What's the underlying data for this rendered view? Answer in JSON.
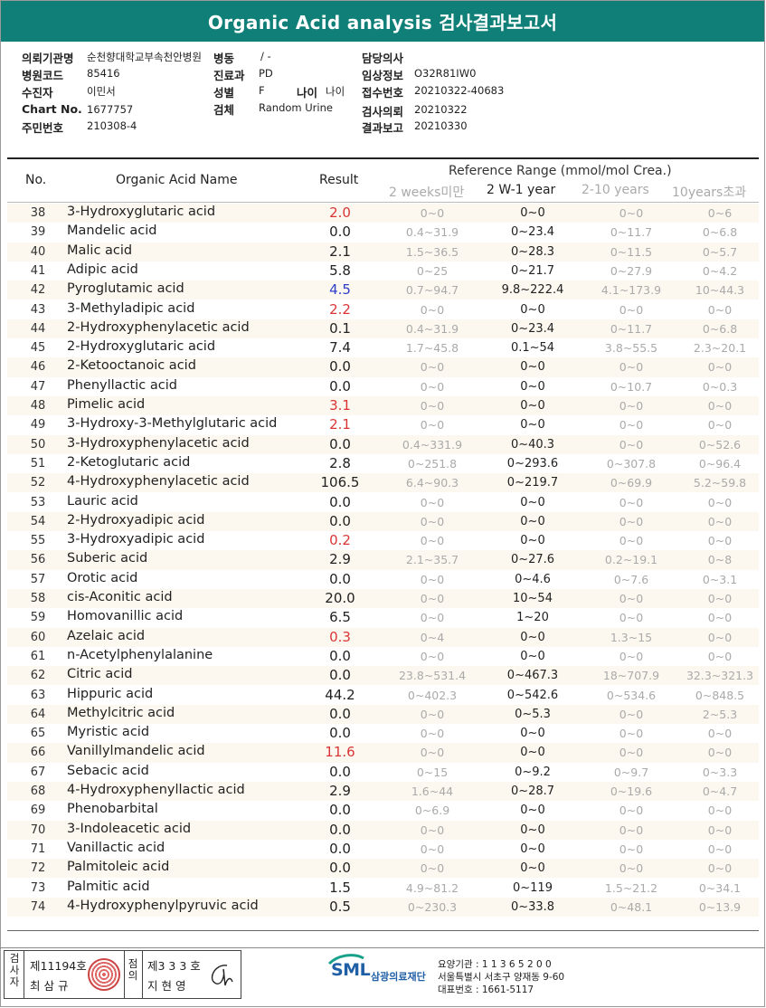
{
  "title": "Organic Acid analysis 검사결과보고서",
  "info": {
    "institution_label": "의뢰기관명",
    "institution_value": "순천향대학교부속천안병원",
    "ward_label": "병동",
    "ward_value": "/ -",
    "doctor_label": "담당의사",
    "doctor_value": "",
    "hospital_code_label": "병원코드",
    "hospital_code_value": "85416",
    "dept_label": "진료과",
    "dept_value": "PD",
    "clinical_label": "임상정보",
    "clinical_value": "O32R81IW0",
    "patient_label": "수진자",
    "patient_value": "이민서",
    "sex_label": "성별",
    "sex_value": "F",
    "age_label": "나이",
    "age_value": "나이",
    "accession_label": "접수번호",
    "accession_value": "20210322-40683",
    "chart_label": "Chart No.",
    "chart_value": "1677757",
    "specimen_label": "검체",
    "specimen_value": "Random Urine",
    "request_label": "검사의뢰",
    "request_value": "20210322",
    "resident_label": "주민번호",
    "resident_value": "210308-4",
    "report_label": "결과보고",
    "report_value": "20210330"
  },
  "table": {
    "headers": {
      "no": "No.",
      "name": "Organic Acid Name",
      "result": "Result",
      "reference": "Reference Range (mmol/mol Crea.)",
      "r1": "2 weeks미만",
      "r2": "2 W-1 year",
      "r3": "2-10 years",
      "r4": "10years초과"
    },
    "rows": [
      {
        "no": "38",
        "name": "3-Hydroxyglutaric acid",
        "result": "2.0",
        "flag": "red",
        "r1": "0~0",
        "r2": "0~0",
        "r3": "0~0",
        "r4": "0~6"
      },
      {
        "no": "39",
        "name": "Mandelic acid",
        "result": "0.0",
        "flag": "",
        "r1": "0.4~31.9",
        "r2": "0~23.4",
        "r3": "0~11.7",
        "r4": "0~6.8"
      },
      {
        "no": "40",
        "name": "Malic acid",
        "result": "2.1",
        "flag": "",
        "r1": "1.5~36.5",
        "r2": "0~28.3",
        "r3": "0~11.5",
        "r4": "0~5.7"
      },
      {
        "no": "41",
        "name": "Adipic acid",
        "result": "5.8",
        "flag": "",
        "r1": "0~25",
        "r2": "0~21.7",
        "r3": "0~27.9",
        "r4": "0~4.2"
      },
      {
        "no": "42",
        "name": "Pyroglutamic acid",
        "result": "4.5",
        "flag": "blue",
        "r1": "0.7~94.7",
        "r2": "9.8~222.4",
        "r3": "4.1~173.9",
        "r4": "10~44.3"
      },
      {
        "no": "43",
        "name": "3-Methyladipic acid",
        "result": "2.2",
        "flag": "red",
        "r1": "0~0",
        "r2": "0~0",
        "r3": "0~0",
        "r4": "0~0"
      },
      {
        "no": "44",
        "name": "2-Hydroxyphenylacetic acid",
        "result": "0.1",
        "flag": "",
        "r1": "0.4~31.9",
        "r2": "0~23.4",
        "r3": "0~11.7",
        "r4": "0~6.8"
      },
      {
        "no": "45",
        "name": "2-Hydroxyglutaric acid",
        "result": "7.4",
        "flag": "",
        "r1": "1.7~45.8",
        "r2": "0.1~54",
        "r3": "3.8~55.5",
        "r4": "2.3~20.1"
      },
      {
        "no": "46",
        "name": "2-Ketooctanoic acid",
        "result": "0.0",
        "flag": "",
        "r1": "0~0",
        "r2": "0~0",
        "r3": "0~0",
        "r4": "0~0"
      },
      {
        "no": "47",
        "name": "Phenyllactic acid",
        "result": "0.0",
        "flag": "",
        "r1": "0~0",
        "r2": "0~0",
        "r3": "0~10.7",
        "r4": "0~0.3"
      },
      {
        "no": "48",
        "name": "Pimelic acid",
        "result": "3.1",
        "flag": "red",
        "r1": "0~0",
        "r2": "0~0",
        "r3": "0~0",
        "r4": "0~0"
      },
      {
        "no": "49",
        "name": "3-Hydroxy-3-Methylglutaric acid",
        "result": "2.1",
        "flag": "red",
        "r1": "0~0",
        "r2": "0~0",
        "r3": "0~0",
        "r4": "0~0"
      },
      {
        "no": "50",
        "name": "3-Hydroxyphenylacetic acid",
        "result": "0.0",
        "flag": "",
        "r1": "0.4~331.9",
        "r2": "0~40.3",
        "r3": "0~0",
        "r4": "0~52.6"
      },
      {
        "no": "51",
        "name": "2-Ketoglutaric acid",
        "result": "2.8",
        "flag": "",
        "r1": "0~251.8",
        "r2": "0~293.6",
        "r3": "0~307.8",
        "r4": "0~96.4"
      },
      {
        "no": "52",
        "name": "4-Hydroxyphenylacetic acid",
        "result": "106.5",
        "flag": "",
        "r1": "6.4~90.3",
        "r2": "0~219.7",
        "r3": "0~69.9",
        "r4": "5.2~59.8"
      },
      {
        "no": "53",
        "name": "Lauric acid",
        "result": "0.0",
        "flag": "",
        "r1": "0~0",
        "r2": "0~0",
        "r3": "0~0",
        "r4": "0~0"
      },
      {
        "no": "54",
        "name": "2-Hydroxyadipic acid",
        "result": "0.0",
        "flag": "",
        "r1": "0~0",
        "r2": "0~0",
        "r3": "0~0",
        "r4": "0~0"
      },
      {
        "no": "55",
        "name": "3-Hydroxyadipic acid",
        "result": "0.2",
        "flag": "red",
        "r1": "0~0",
        "r2": "0~0",
        "r3": "0~0",
        "r4": "0~0"
      },
      {
        "no": "56",
        "name": "Suberic acid",
        "result": "2.9",
        "flag": "",
        "r1": "2.1~35.7",
        "r2": "0~27.6",
        "r3": "0.2~19.1",
        "r4": "0~8"
      },
      {
        "no": "57",
        "name": "Orotic acid",
        "result": "0.0",
        "flag": "",
        "r1": "0~0",
        "r2": "0~4.6",
        "r3": "0~7.6",
        "r4": "0~3.1"
      },
      {
        "no": "58",
        "name": "cis-Aconitic acid",
        "result": "20.0",
        "flag": "",
        "r1": "0~0",
        "r2": "10~54",
        "r3": "0~0",
        "r4": "0~0"
      },
      {
        "no": "59",
        "name": "Homovanillic acid",
        "result": "6.5",
        "flag": "",
        "r1": "0~0",
        "r2": "1~20",
        "r3": "0~0",
        "r4": "0~0"
      },
      {
        "no": "60",
        "name": "Azelaic acid",
        "result": "0.3",
        "flag": "red",
        "r1": "0~4",
        "r2": "0~0",
        "r3": "1.3~15",
        "r4": "0~0"
      },
      {
        "no": "61",
        "name": "n-Acetylphenylalanine",
        "result": "0.0",
        "flag": "",
        "r1": "0~0",
        "r2": "0~0",
        "r3": "0~0",
        "r4": "0~0"
      },
      {
        "no": "62",
        "name": "Citric acid",
        "result": "0.0",
        "flag": "",
        "r1": "23.8~531.4",
        "r2": "0~467.3",
        "r3": "18~707.9",
        "r4": "32.3~321.3"
      },
      {
        "no": "63",
        "name": "Hippuric acid",
        "result": "44.2",
        "flag": "",
        "r1": "0~402.3",
        "r2": "0~542.6",
        "r3": "0~534.6",
        "r4": "0~848.5"
      },
      {
        "no": "64",
        "name": "Methylcitric acid",
        "result": "0.0",
        "flag": "",
        "r1": "0~0",
        "r2": "0~5.3",
        "r3": "0~0",
        "r4": "2~5.3"
      },
      {
        "no": "65",
        "name": "Myristic acid",
        "result": "0.0",
        "flag": "",
        "r1": "0~0",
        "r2": "0~0",
        "r3": "0~0",
        "r4": "0~0"
      },
      {
        "no": "66",
        "name": "Vanillylmandelic acid",
        "result": "11.6",
        "flag": "red",
        "r1": "0~0",
        "r2": "0~0",
        "r3": "0~0",
        "r4": "0~0"
      },
      {
        "no": "67",
        "name": "Sebacic acid",
        "result": "0.0",
        "flag": "",
        "r1": "0~15",
        "r2": "0~9.2",
        "r3": "0~9.7",
        "r4": "0~3.3"
      },
      {
        "no": "68",
        "name": "4-Hydroxyphenyllactic acid",
        "result": "2.9",
        "flag": "",
        "r1": "1.6~44",
        "r2": "0~28.7",
        "r3": "0~19.6",
        "r4": "0~4.7"
      },
      {
        "no": "69",
        "name": "Phenobarbital",
        "result": "0.0",
        "flag": "",
        "r1": "0~6.9",
        "r2": "0~0",
        "r3": "0~0",
        "r4": "0~0"
      },
      {
        "no": "70",
        "name": "3-Indoleacetic acid",
        "result": "0.0",
        "flag": "",
        "r1": "0~0",
        "r2": "0~0",
        "r3": "0~0",
        "r4": "0~0"
      },
      {
        "no": "71",
        "name": "Vanillactic acid",
        "result": "0.0",
        "flag": "",
        "r1": "0~0",
        "r2": "0~0",
        "r3": "0~0",
        "r4": "0~0"
      },
      {
        "no": "72",
        "name": "Palmitoleic acid",
        "result": "0.0",
        "flag": "",
        "r1": "0~0",
        "r2": "0~0",
        "r3": "0~0",
        "r4": "0~0"
      },
      {
        "no": "73",
        "name": "Palmitic acid",
        "result": "1.5",
        "flag": "",
        "r1": "4.9~81.2",
        "r2": "0~119",
        "r3": "1.5~21.2",
        "r4": "0~34.1"
      },
      {
        "no": "74",
        "name": "4-Hydroxyphenylpyruvic acid",
        "result": "0.5",
        "flag": "",
        "r1": "0~230.3",
        "r2": "0~33.8",
        "r3": "0~48.1",
        "r4": "0~13.9"
      }
    ]
  },
  "footer": {
    "inspector_label": "검사자",
    "inspector_no": "제11194호",
    "inspector_name": "최 삼 규",
    "reviewer_label": "점의",
    "reviewer_no": "제3 3 3 호",
    "reviewer_name": "지 현 영",
    "logo_text": "SML",
    "logo_org": "삼광의료재단",
    "care_code": "요양기관 : 1 1 3 6 5 2 0 0",
    "address": "서울특별시 서초구 양재동 9-60",
    "phone": "대표번호 : 1661-5117",
    "colors": {
      "accent": "#0f7f77",
      "abnormal_high": "#d93535",
      "abnormal_low": "#2d3fc9"
    }
  }
}
